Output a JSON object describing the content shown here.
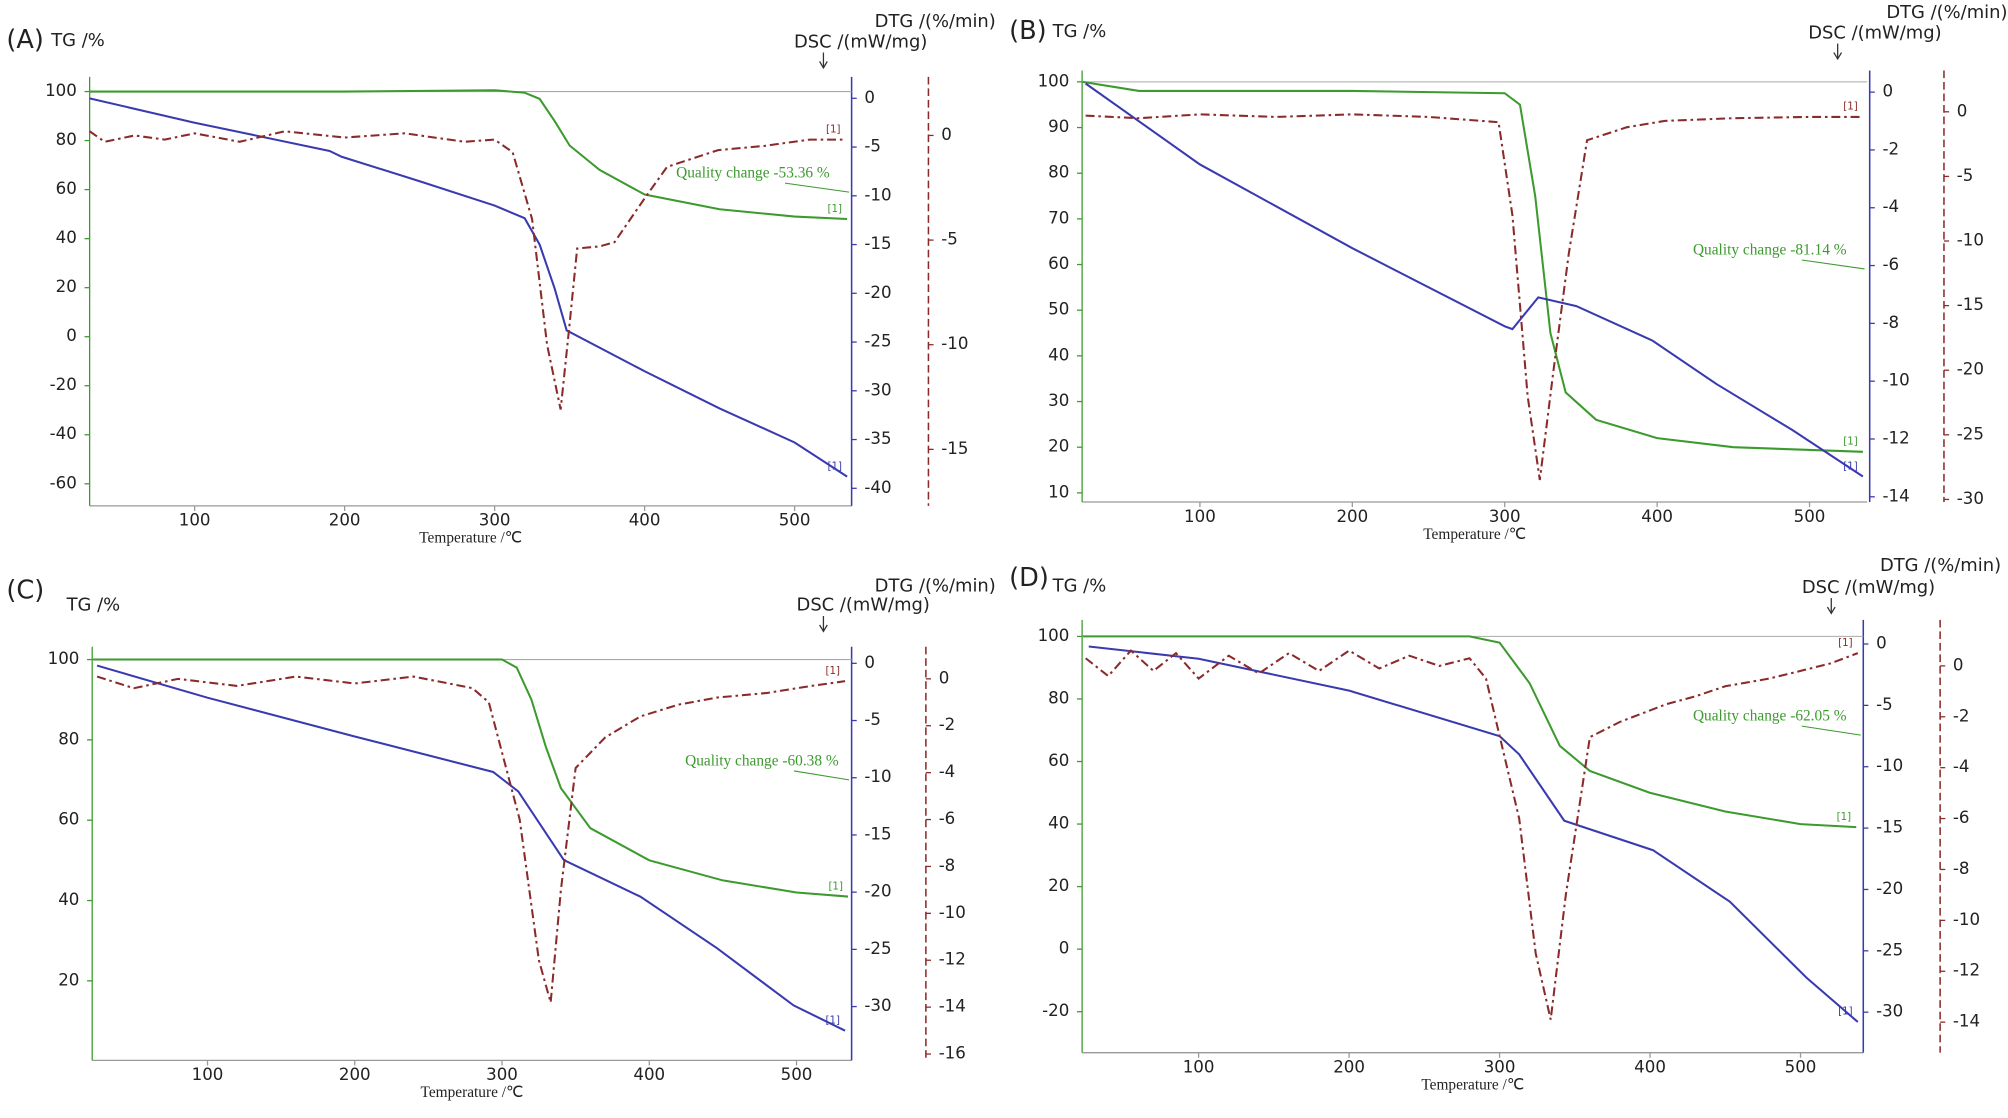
{
  "chart_data": [
    {
      "type": "line",
      "panel_label": "(A)",
      "y_label": "TG /%",
      "y2_label": "DSC /(mW/mg)",
      "y3_label": "DTG /(%/min)",
      "x_label": "Temperature /℃",
      "annotation": "Quality change -53.36 %",
      "end_label": "[1]",
      "xlim": [
        30,
        538
      ],
      "xticks": [
        100,
        200,
        300,
        400,
        500
      ],
      "ylim": [
        -69,
        106
      ],
      "yticks": [
        -60,
        -40,
        -20,
        0,
        20,
        40,
        60,
        80,
        100
      ],
      "y2lim": [
        -41.8,
        2.2
      ],
      "y2ticks": [
        0,
        -5,
        -10,
        -15,
        -20,
        -25,
        -30,
        -35,
        -40
      ],
      "y3lim": [
        -17.7,
        2.8
      ],
      "y3ticks": [
        0,
        -5,
        -10,
        -15
      ],
      "series": [
        {
          "color": "#3c9a2e",
          "x": [
            30,
            100,
            200,
            300,
            320,
            330,
            340,
            350,
            370,
            400,
            450,
            500,
            535
          ],
          "values": [
            100,
            100,
            100,
            100.5,
            99.5,
            97,
            88,
            78,
            68,
            58,
            52,
            49,
            48
          ]
        },
        {
          "color": "#3a3ab0",
          "axis": "y2",
          "x": [
            30,
            100,
            190,
            198,
            250,
            300,
            320,
            330,
            340,
            348,
            400,
            450,
            500,
            535
          ],
          "values": [
            0,
            -2.5,
            -5.4,
            -6,
            -8.5,
            -11,
            -12.3,
            -15,
            -19.5,
            -23.8,
            -28,
            -31.8,
            -35.3,
            -38.8
          ]
        },
        {
          "color": "#8b2a2a",
          "axis": "y3",
          "dash": "dashdot",
          "x": [
            30,
            40,
            60,
            80,
            100,
            130,
            160,
            200,
            240,
            280,
            300,
            312,
            325,
            335,
            344,
            350,
            355,
            370,
            380,
            400,
            415,
            449,
            480,
            510,
            534
          ],
          "values": [
            0.2,
            -0.3,
            0,
            -0.2,
            0.1,
            -0.3,
            0.2,
            -0.1,
            0.1,
            -0.3,
            -0.2,
            -0.8,
            -4,
            -10,
            -13.1,
            -9,
            -5.4,
            -5.3,
            -5.1,
            -3,
            -1.5,
            -0.7,
            -0.5,
            -0.2,
            -0.2
          ]
        }
      ]
    },
    {
      "type": "line",
      "panel_label": "(B)",
      "y_label": "TG /%",
      "y2_label": "DSC /(mW/mg)",
      "y3_label": "DTG /(%/min)",
      "x_label": "Temperature /℃",
      "annotation": "Quality change -81.14 %",
      "end_label": "[1]",
      "xlim": [
        22.7,
        537.8
      ],
      "xticks": [
        100,
        200,
        300,
        400,
        500
      ],
      "ylim": [
        8,
        102.5
      ],
      "yticks": [
        10,
        20,
        30,
        40,
        50,
        60,
        70,
        80,
        90,
        100
      ],
      "y2lim": [
        -14.18,
        0.75
      ],
      "y2ticks": [
        0,
        -2,
        -4,
        -6,
        -8,
        -10,
        -12,
        -14
      ],
      "y3lim": [
        -30.2,
        3.2
      ],
      "y3ticks": [
        0,
        -5,
        -10,
        -15,
        -20,
        -25,
        -30
      ],
      "series": [
        {
          "color": "#3c9a2e",
          "x": [
            23,
            60,
            100,
            200,
            300,
            310,
            320,
            330,
            340,
            360,
            400,
            450,
            535
          ],
          "values": [
            100,
            98,
            98,
            98,
            97.5,
            95,
            75,
            45,
            32,
            26,
            22,
            20,
            19
          ]
        },
        {
          "color": "#3a3ab0",
          "axis": "y2",
          "x": [
            25,
            100,
            200,
            300,
            305,
            322,
            347,
            397,
            439,
            489,
            535
          ],
          "values": [
            0.3,
            -2.5,
            -5.4,
            -8.1,
            -8.2,
            -7.1,
            -7.4,
            -8.6,
            -10.1,
            -11.7,
            -13.3
          ]
        },
        {
          "color": "#8b2a2a",
          "axis": "y3",
          "dash": "dashdot",
          "x": [
            25,
            60,
            100,
            150,
            200,
            250,
            296,
            305,
            315,
            323,
            332,
            342,
            354,
            380,
            405,
            450,
            500,
            535
          ],
          "values": [
            -0.3,
            -0.5,
            -0.2,
            -0.4,
            -0.2,
            -0.4,
            -0.8,
            -8,
            -22,
            -28.5,
            -20,
            -11,
            -2.2,
            -1.2,
            -0.7,
            -0.5,
            -0.4,
            -0.4
          ]
        }
      ]
    },
    {
      "type": "line",
      "panel_label": "(C)",
      "y_label": "TG /%",
      "y2_label": "DSC /(mW/mg)",
      "y3_label": "DTG /(%/min)",
      "x_label": "Temperature /℃",
      "annotation": "Quality change -60.38 %",
      "end_label": "[1]",
      "xlim": [
        21.7,
        537.4
      ],
      "xticks": [
        100,
        200,
        300,
        400,
        500
      ],
      "ylim": [
        0.2,
        103.2
      ],
      "yticks": [
        20,
        40,
        60,
        80,
        100
      ],
      "y2lim": [
        -34.7,
        1.45
      ],
      "y2ticks": [
        0,
        -5,
        -10,
        -15,
        -20,
        -25,
        -30
      ],
      "y3lim": [
        -16.27,
        1.37
      ],
      "y3ticks": [
        0,
        -2,
        -4,
        -6,
        -8,
        -10,
        -12,
        -14,
        -16
      ],
      "series": [
        {
          "color": "#3c9a2e",
          "x": [
            22,
            100,
            200,
            300,
            310,
            320,
            330,
            340,
            360,
            400,
            450,
            500,
            535
          ],
          "values": [
            100,
            100,
            100,
            100,
            98,
            90,
            78,
            68,
            58,
            50,
            45,
            42,
            41
          ]
        },
        {
          "color": "#3a3ab0",
          "axis": "y2",
          "x": [
            25,
            100,
            200,
            294,
            311,
            342,
            394,
            446,
            498,
            533
          ],
          "values": [
            -0.2,
            -3,
            -6.4,
            -9.5,
            -11.2,
            -17.2,
            -20.4,
            -24.9,
            -29.9,
            -32.1
          ]
        },
        {
          "color": "#8b2a2a",
          "axis": "y3",
          "dash": "dashdot",
          "x": [
            25,
            50,
            80,
            120,
            160,
            200,
            240,
            280,
            291,
            312,
            325,
            333,
            340,
            350,
            370,
            394,
            420,
            446,
            480,
            510,
            533
          ],
          "values": [
            0.1,
            -0.4,
            0,
            -0.3,
            0.1,
            -0.2,
            0.1,
            -0.4,
            -1,
            -6,
            -12,
            -13.8,
            -9,
            -3.8,
            -2.5,
            -1.6,
            -1.1,
            -0.8,
            -0.6,
            -0.3,
            -0.1
          ]
        }
      ]
    },
    {
      "type": "line",
      "panel_label": "(D)",
      "y_label": "TG /%",
      "y2_label": "DSC /(mW/mg)",
      "y3_label": "DTG /(%/min)",
      "x_label": "Temperature /℃",
      "annotation": "Quality change -62.05 %",
      "end_label": "[1]",
      "xlim": [
        22.6,
        541.7
      ],
      "xticks": [
        100,
        200,
        300,
        400,
        500
      ],
      "ylim": [
        -33.1,
        105.3
      ],
      "yticks": [
        -20,
        0,
        20,
        40,
        60,
        80,
        100
      ],
      "y2lim": [
        -33.3,
        1.97
      ],
      "y2ticks": [
        0,
        -5,
        -10,
        -15,
        -20,
        -25,
        -30
      ],
      "y3lim": [
        -15.2,
        1.81
      ],
      "y3ticks": [
        0,
        -2,
        -4,
        -6,
        -8,
        -10,
        -12,
        -14
      ],
      "series": [
        {
          "color": "#3c9a2e",
          "x": [
            23,
            100,
            200,
            280,
            300,
            320,
            340,
            360,
            400,
            450,
            500,
            537
          ],
          "values": [
            100,
            100,
            100,
            100,
            98,
            85,
            65,
            57,
            50,
            44,
            40,
            39
          ]
        },
        {
          "color": "#3a3ab0",
          "axis": "y2",
          "x": [
            27,
            100,
            200,
            300,
            313,
            343,
            402,
            453,
            504,
            538
          ],
          "values": [
            -0.2,
            -1.2,
            -3.8,
            -7.5,
            -9,
            -14.4,
            -16.8,
            -21,
            -27.2,
            -30.8
          ]
        },
        {
          "color": "#8b2a2a",
          "axis": "y3",
          "dash": "dashdot",
          "x": [
            25,
            40,
            55,
            70,
            85,
            100,
            120,
            140,
            160,
            180,
            200,
            220,
            240,
            260,
            280,
            291,
            313,
            324,
            334,
            344,
            360,
            380,
            411,
            430,
            450,
            479,
            500,
            520,
            538
          ],
          "values": [
            0.3,
            -0.4,
            0.6,
            -0.2,
            0.5,
            -0.5,
            0.4,
            -0.3,
            0.5,
            -0.2,
            0.6,
            -0.1,
            0.4,
            0,
            0.3,
            -0.5,
            -6,
            -11.3,
            -13.9,
            -9,
            -2.8,
            -2.2,
            -1.5,
            -1.2,
            -0.8,
            -0.5,
            -0.2,
            0.1,
            0.5
          ]
        }
      ]
    }
  ]
}
